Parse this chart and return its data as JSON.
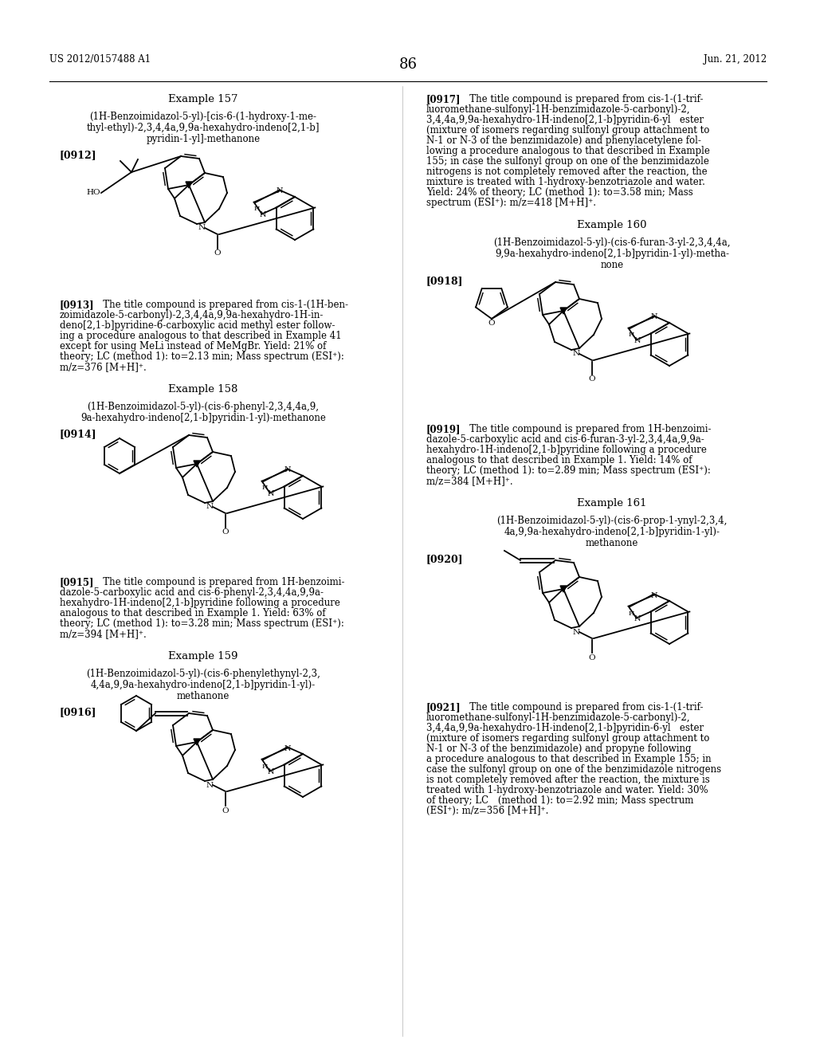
{
  "background_color": "#ffffff",
  "page_header_left": "US 2012/0157488 A1",
  "page_header_right": "Jun. 21, 2012",
  "page_number": "86"
}
